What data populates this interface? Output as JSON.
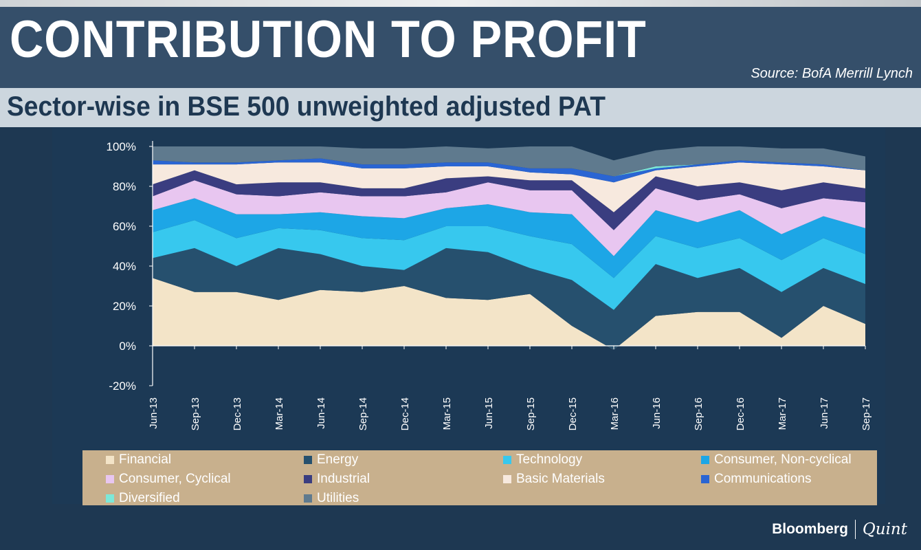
{
  "header": {
    "title": "CONTRIBUTION TO PROFIT",
    "source": "Source: BofA Merrill Lynch",
    "subtitle": "Sector-wise in BSE 500 unweighted adjusted PAT"
  },
  "brand": {
    "bloomberg": "Bloomberg",
    "quint": "Quint"
  },
  "chart_data": {
    "type": "area",
    "stacked": true,
    "title": "Sector-wise in BSE 500 unweighted adjusted PAT",
    "xlabel": "",
    "ylabel": "",
    "ylim": [
      -20,
      100
    ],
    "yticks": [
      "100%",
      "80%",
      "60%",
      "40%",
      "20%",
      "0%",
      "-20%"
    ],
    "ytick_values": [
      100,
      80,
      60,
      40,
      20,
      0,
      -20
    ],
    "categories": [
      "Jun-13",
      "Sep-13",
      "Dec-13",
      "Mar-14",
      "Jun-14",
      "Sep-14",
      "Dec-14",
      "Mar-15",
      "Jun-15",
      "Sep-15",
      "Dec-15",
      "Mar-16",
      "Jun-16",
      "Sep-16",
      "Dec-16",
      "Mar-17",
      "Jun-17",
      "Sep-17"
    ],
    "series": [
      {
        "name": "Financial",
        "color": "#f3e4c8",
        "values": [
          34,
          27,
          27,
          23,
          28,
          27,
          30,
          24,
          23,
          26,
          10,
          -2,
          15,
          17,
          17,
          4,
          20,
          11
        ]
      },
      {
        "name": "Energy",
        "color": "#26506e",
        "values": [
          10,
          22,
          13,
          26,
          18,
          13,
          8,
          25,
          24,
          13,
          23,
          20,
          26,
          17,
          22,
          23,
          19,
          20
        ]
      },
      {
        "name": "Technology",
        "color": "#37c8ee",
        "values": [
          13,
          14,
          14,
          10,
          12,
          14,
          15,
          11,
          13,
          16,
          18,
          16,
          14,
          15,
          15,
          16,
          15,
          15
        ]
      },
      {
        "name": "Consumer, Non-cyclical",
        "color": "#1da6e6",
        "values": [
          11,
          11,
          12,
          7,
          9,
          11,
          11,
          9,
          11,
          12,
          15,
          11,
          13,
          13,
          14,
          13,
          11,
          13
        ]
      },
      {
        "name": "Consumer, Cyclical",
        "color": "#e8c6f0",
        "values": [
          7,
          9,
          10,
          9,
          10,
          10,
          11,
          8,
          11,
          11,
          12,
          13,
          11,
          11,
          8,
          13,
          9,
          13
        ]
      },
      {
        "name": "Industrial",
        "color": "#3a3d80",
        "values": [
          6,
          5,
          5,
          7,
          5,
          4,
          4,
          7,
          3,
          5,
          5,
          9,
          6,
          7,
          6,
          9,
          8,
          7
        ]
      },
      {
        "name": "Basic Materials",
        "color": "#f7e9de",
        "values": [
          10,
          3,
          10,
          10,
          10,
          10,
          10,
          6,
          5,
          4,
          3,
          15,
          3,
          10,
          10,
          13,
          8,
          9
        ]
      },
      {
        "name": "Communications",
        "color": "#2a65d3",
        "values": [
          2,
          1,
          1,
          1,
          2,
          2,
          2,
          2,
          2,
          2,
          3,
          3,
          1,
          1,
          1,
          1,
          1,
          0
        ]
      },
      {
        "name": "Diversified",
        "color": "#7de8d8",
        "values": [
          0,
          0,
          0,
          0,
          0,
          0,
          0,
          0,
          0,
          0,
          0,
          0,
          1,
          0,
          0,
          0,
          0,
          0
        ]
      },
      {
        "name": "Utilities",
        "color": "#5f7a8e",
        "values": [
          7,
          8,
          8,
          7,
          6,
          8,
          8,
          8,
          7,
          11,
          11,
          8,
          8,
          9,
          7,
          7,
          8,
          7
        ]
      }
    ]
  }
}
